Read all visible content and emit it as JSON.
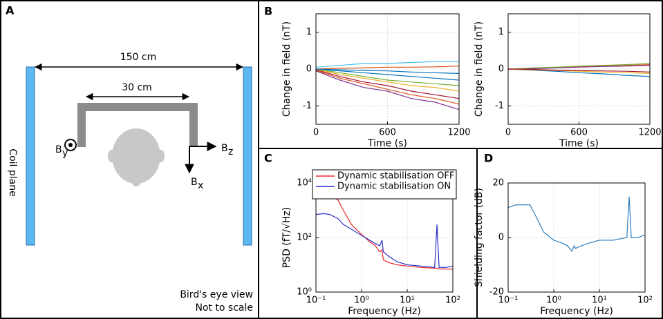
{
  "panels": {
    "a": "A",
    "b": "B",
    "c": "C",
    "d": "D"
  },
  "diagram": {
    "outer_width": "150 cm",
    "inner_width": "30 cm",
    "coil_label": "Coil plane",
    "field_y": {
      "main": "B",
      "sub": "y"
    },
    "field_z": {
      "main": "B",
      "sub": "z"
    },
    "field_x": {
      "main": "B",
      "sub": "x"
    },
    "note_1": "Bird's eye view",
    "note_2": "Not to scale"
  },
  "chart_data": [
    {
      "type": "line",
      "x": [
        0,
        200,
        400,
        600,
        800,
        1000,
        1200
      ],
      "xlim": [
        0,
        1200
      ],
      "xticks": [
        0,
        600,
        1200
      ],
      "ylim": [
        -1.5,
        1.5
      ],
      "yticks": [
        -1,
        0,
        1
      ],
      "x_label": "Time (s)",
      "y_label": "Change in field (nT)",
      "grid": true,
      "series": [
        {
          "color": "#0072bd",
          "values": [
            0,
            -0.05,
            -0.1,
            -0.15,
            -0.2,
            -0.25,
            -0.3
          ]
        },
        {
          "color": "#d95319",
          "values": [
            0,
            0.02,
            0.03,
            0.05,
            0.05,
            0.06,
            0.08
          ]
        },
        {
          "color": "#edb120",
          "values": [
            0,
            -0.15,
            -0.25,
            -0.35,
            -0.45,
            -0.5,
            -0.6
          ]
        },
        {
          "color": "#7e2f8e",
          "values": [
            -0.05,
            -0.3,
            -0.5,
            -0.6,
            -0.8,
            -0.9,
            -1.1
          ]
        },
        {
          "color": "#77ac30",
          "values": [
            0,
            -0.1,
            -0.2,
            -0.3,
            -0.35,
            -0.4,
            -0.45
          ]
        },
        {
          "color": "#4dbeee",
          "values": [
            0.05,
            0.1,
            0.15,
            0.15,
            0.18,
            0.2,
            0.2
          ]
        },
        {
          "color": "#a2142f",
          "values": [
            -0.02,
            -0.2,
            -0.35,
            -0.45,
            -0.6,
            -0.7,
            -0.8
          ]
        },
        {
          "color": "#0072bd",
          "values": [
            0,
            -0.02,
            -0.04,
            -0.05,
            -0.08,
            -0.1,
            -0.12
          ]
        },
        {
          "color": "#d95319",
          "values": [
            -0.03,
            -0.25,
            -0.4,
            -0.55,
            -0.7,
            -0.8,
            -0.95
          ]
        }
      ]
    },
    {
      "type": "line",
      "x": [
        0,
        200,
        400,
        600,
        800,
        1000,
        1200
      ],
      "xlim": [
        0,
        1200
      ],
      "xticks": [
        0,
        600,
        1200
      ],
      "ylim": [
        -1.5,
        1.5
      ],
      "yticks": [
        -1,
        0,
        1
      ],
      "x_label": "Time (s)",
      "y_label": "Change in field (nT)",
      "grid": true,
      "series": [
        {
          "color": "#0072bd",
          "values": [
            0,
            -0.03,
            -0.06,
            -0.1,
            -0.13,
            -0.17,
            -0.2
          ]
        },
        {
          "color": "#d95319",
          "values": [
            0,
            0.02,
            0.04,
            0.06,
            0.08,
            0.1,
            0.12
          ]
        },
        {
          "color": "#edb120",
          "values": [
            0,
            -0.02,
            -0.04,
            -0.06,
            -0.08,
            -0.1,
            -0.12
          ]
        },
        {
          "color": "#7e2f8e",
          "values": [
            0,
            0.01,
            0.03,
            0.05,
            0.07,
            0.08,
            0.1
          ]
        },
        {
          "color": "#77ac30",
          "values": [
            0,
            0.03,
            0.05,
            0.08,
            0.1,
            0.12,
            0.15
          ]
        },
        {
          "color": "#a2142f",
          "values": [
            0,
            -0.01,
            -0.03,
            -0.04,
            -0.05,
            -0.06,
            -0.08
          ]
        }
      ]
    },
    {
      "type": "line",
      "xscale": "log",
      "yscale": "log",
      "x": [
        0.1,
        0.15,
        0.2,
        0.3,
        0.4,
        0.6,
        1,
        1.5,
        2,
        2.5,
        2.8,
        3,
        4,
        6,
        10,
        20,
        40,
        45,
        50,
        70,
        100
      ],
      "xlim": [
        0.1,
        100
      ],
      "xticks": [
        {
          "value": 0.1,
          "label": "10⁻¹"
        },
        {
          "value": 1,
          "label": "10⁰"
        },
        {
          "value": 10,
          "label": "10¹"
        },
        {
          "value": 100,
          "label": "10²"
        }
      ],
      "ylim": [
        1,
        10000
      ],
      "yticks": [
        {
          "value": 1,
          "label": "10⁰"
        },
        {
          "value": 100,
          "label": "10²"
        },
        {
          "value": 10000,
          "label": "10⁴"
        }
      ],
      "x_label": "Frequency (Hz)",
      "y_label": "PSD (fT/√Hz)",
      "grid": true,
      "legend": "top",
      "series": [
        {
          "name": "Dynamic stabilisation OFF",
          "color": "#e8262b",
          "values": [
            2800,
            3000,
            3000,
            2500,
            1000,
            300,
            130,
            70,
            50,
            30,
            35,
            15,
            12,
            10,
            9,
            8,
            7.5,
            7.5,
            7,
            7,
            7
          ]
        },
        {
          "name": "Dynamic stabilisation ON",
          "color": "#2a2fc8",
          "values": [
            700,
            750,
            700,
            500,
            300,
            200,
            120,
            80,
            60,
            50,
            80,
            30,
            20,
            13,
            10,
            9,
            8,
            300,
            8,
            8,
            9
          ]
        }
      ]
    },
    {
      "type": "line",
      "xscale": "log",
      "x": [
        0.1,
        0.15,
        0.2,
        0.3,
        0.4,
        0.6,
        1,
        1.5,
        2,
        2.5,
        2.8,
        3,
        4,
        6,
        10,
        20,
        40,
        45,
        50,
        70,
        100
      ],
      "xlim": [
        0.1,
        100
      ],
      "xticks": [
        {
          "value": 0.1,
          "label": "10⁻¹"
        },
        {
          "value": 1,
          "label": "10⁰"
        },
        {
          "value": 10,
          "label": "10¹"
        },
        {
          "value": 100,
          "label": "10²"
        }
      ],
      "ylim": [
        -20,
        20
      ],
      "yticks": [
        -20,
        0,
        20
      ],
      "x_label": "Frequency (Hz)",
      "y_label": "Shielding factor (dB)",
      "grid": true,
      "series": [
        {
          "color": "#2f7fc1",
          "values": [
            11,
            12,
            12,
            12,
            8,
            2,
            -1,
            -2,
            -3,
            -5,
            -3,
            -4,
            -3,
            -2,
            -1,
            -1,
            0,
            15,
            0,
            0,
            1
          ]
        }
      ]
    }
  ]
}
